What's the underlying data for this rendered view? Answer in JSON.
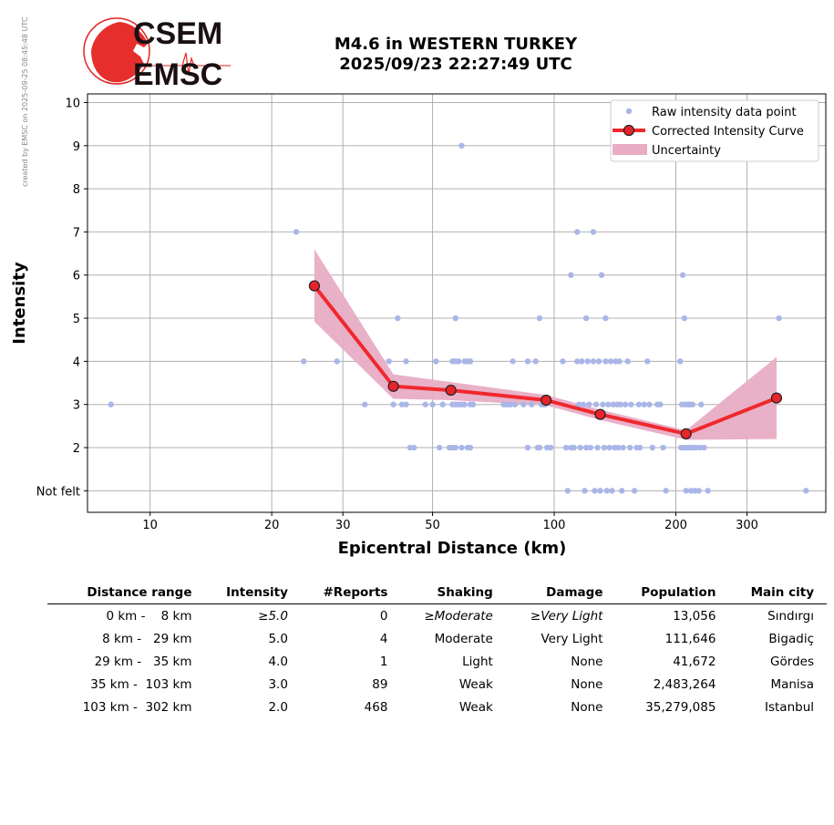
{
  "side_note": "created by EMSC on 2025-09-25 08:45:48 UTC",
  "logo": {
    "line1": "CSEM",
    "line2": "EMSC",
    "color_red": "#e52421",
    "color_dark": "#1a0f12"
  },
  "title": {
    "line1": "M4.6 in WESTERN TURKEY",
    "line2": "2025/09/23 22:27:49 UTC"
  },
  "chart_data": {
    "type": "scatter",
    "xlabel": "Epicentral Distance (km)",
    "ylabel": "Intensity",
    "xscale": "log",
    "xlim": [
      7.0,
      470
    ],
    "ylim": [
      0.5,
      10.2
    ],
    "xticks": [
      10,
      20,
      30,
      50,
      100,
      200,
      300
    ],
    "yticks": [
      {
        "value": 1,
        "label": "Not felt"
      },
      {
        "value": 2,
        "label": "2"
      },
      {
        "value": 3,
        "label": "3"
      },
      {
        "value": 4,
        "label": "4"
      },
      {
        "value": 5,
        "label": "5"
      },
      {
        "value": 6,
        "label": "6"
      },
      {
        "value": 7,
        "label": "7"
      },
      {
        "value": 8,
        "label": "8"
      },
      {
        "value": 9,
        "label": "9"
      },
      {
        "value": 10,
        "label": "10"
      }
    ],
    "grid": true,
    "legend_position": "top-right",
    "legend": [
      "Raw intensity data point",
      "Corrected Intensity Curve",
      "Uncertainty"
    ],
    "colors": {
      "raw": "#aab6e8",
      "curve": "#f0282d",
      "marker": "#e8232a",
      "band": "#e8adc5",
      "grid": "#b0b0b0"
    },
    "raw_points": [
      [
        8.0,
        3
      ],
      [
        23,
        7
      ],
      [
        24,
        4
      ],
      [
        29,
        4
      ],
      [
        34,
        3
      ],
      [
        39,
        4
      ],
      [
        41,
        5
      ],
      [
        42,
        3
      ],
      [
        40,
        3
      ],
      [
        43,
        4
      ],
      [
        43,
        3
      ],
      [
        44,
        2
      ],
      [
        45,
        2
      ],
      [
        48,
        3
      ],
      [
        50,
        3
      ],
      [
        51,
        4
      ],
      [
        52,
        2
      ],
      [
        53,
        3
      ],
      [
        55,
        2
      ],
      [
        56,
        3
      ],
      [
        56,
        2
      ],
      [
        56,
        4
      ],
      [
        57,
        5
      ],
      [
        57,
        3
      ],
      [
        57,
        2
      ],
      [
        57,
        4
      ],
      [
        58,
        3
      ],
      [
        58,
        4
      ],
      [
        59,
        3
      ],
      [
        59,
        2
      ],
      [
        59,
        9
      ],
      [
        60,
        4
      ],
      [
        60,
        3
      ],
      [
        61,
        2
      ],
      [
        61,
        4
      ],
      [
        62,
        3
      ],
      [
        62,
        4
      ],
      [
        62,
        2
      ],
      [
        63,
        3
      ],
      [
        75,
        3
      ],
      [
        76,
        3
      ],
      [
        77,
        3
      ],
      [
        78,
        3
      ],
      [
        79,
        4
      ],
      [
        80,
        3
      ],
      [
        84,
        3
      ],
      [
        86,
        2
      ],
      [
        86,
        4
      ],
      [
        88,
        3
      ],
      [
        90,
        4
      ],
      [
        91,
        2
      ],
      [
        92,
        2
      ],
      [
        92,
        5
      ],
      [
        93,
        3
      ],
      [
        94,
        3
      ],
      [
        95,
        3
      ],
      [
        96,
        2
      ],
      [
        98,
        2
      ],
      [
        105,
        4
      ],
      [
        107,
        2
      ],
      [
        108,
        1
      ],
      [
        110,
        6
      ],
      [
        110,
        2
      ],
      [
        112,
        2
      ],
      [
        114,
        7
      ],
      [
        114,
        4
      ],
      [
        115,
        3
      ],
      [
        116,
        2
      ],
      [
        117,
        4
      ],
      [
        118,
        3
      ],
      [
        119,
        1
      ],
      [
        120,
        2
      ],
      [
        120,
        5
      ],
      [
        121,
        4
      ],
      [
        122,
        3
      ],
      [
        123,
        2
      ],
      [
        125,
        7
      ],
      [
        125,
        4
      ],
      [
        126,
        1
      ],
      [
        127,
        3
      ],
      [
        128,
        2
      ],
      [
        129,
        4
      ],
      [
        130,
        1
      ],
      [
        131,
        6
      ],
      [
        132,
        3
      ],
      [
        133,
        2
      ],
      [
        134,
        4
      ],
      [
        134,
        5
      ],
      [
        135,
        1
      ],
      [
        136,
        3
      ],
      [
        137,
        2
      ],
      [
        138,
        4
      ],
      [
        139,
        1
      ],
      [
        140,
        3
      ],
      [
        141,
        2
      ],
      [
        142,
        4
      ],
      [
        143,
        3
      ],
      [
        144,
        2
      ],
      [
        145,
        4
      ],
      [
        146,
        3
      ],
      [
        147,
        1
      ],
      [
        148,
        2
      ],
      [
        150,
        3
      ],
      [
        152,
        4
      ],
      [
        154,
        2
      ],
      [
        155,
        3
      ],
      [
        158,
        1
      ],
      [
        160,
        2
      ],
      [
        162,
        3
      ],
      [
        163,
        2
      ],
      [
        167,
        3
      ],
      [
        170,
        4
      ],
      [
        172,
        3
      ],
      [
        175,
        2
      ],
      [
        180,
        3
      ],
      [
        183,
        3
      ],
      [
        186,
        2
      ],
      [
        189,
        1
      ],
      [
        205,
        4
      ],
      [
        206,
        2
      ],
      [
        207,
        3
      ],
      [
        208,
        6
      ],
      [
        209,
        2
      ],
      [
        210,
        5
      ],
      [
        211,
        3
      ],
      [
        212,
        1
      ],
      [
        213,
        2
      ],
      [
        214,
        3
      ],
      [
        215,
        2
      ],
      [
        216,
        3
      ],
      [
        218,
        1
      ],
      [
        219,
        2
      ],
      [
        220,
        3
      ],
      [
        222,
        2
      ],
      [
        223,
        1
      ],
      [
        225,
        2
      ],
      [
        228,
        1
      ],
      [
        230,
        2
      ],
      [
        231,
        3
      ],
      [
        235,
        2
      ],
      [
        240,
        1
      ],
      [
        360,
        5
      ],
      [
        420,
        1
      ]
    ],
    "curve": [
      [
        25.5,
        5.75
      ],
      [
        40,
        3.42
      ],
      [
        55.5,
        3.33
      ],
      [
        95.5,
        3.1
      ],
      [
        130,
        2.77
      ],
      [
        212,
        2.32
      ],
      [
        355,
        3.15
      ]
    ],
    "band": {
      "x": [
        25.5,
        40,
        55.5,
        95.5,
        130,
        212,
        355
      ],
      "upper": [
        6.6,
        3.7,
        3.52,
        3.22,
        2.88,
        2.4,
        4.1
      ],
      "lower": [
        4.92,
        3.13,
        3.1,
        2.98,
        2.64,
        2.18,
        2.2
      ]
    }
  },
  "table": {
    "headers": [
      "Distance range",
      "Intensity",
      "#Reports",
      "Shaking",
      "Damage",
      "Population",
      "Main city"
    ],
    "rows": [
      {
        "range": "0 km -    8 km",
        "intensity": "≥5.0",
        "reports": "0",
        "shaking": "≥Moderate",
        "damage": "≥Very Light",
        "population": "13,056",
        "city": "Sındırgı"
      },
      {
        "range": "8 km -   29 km",
        "intensity": "5.0",
        "reports": "4",
        "shaking": "Moderate",
        "damage": "Very Light",
        "population": "111,646",
        "city": "Bigadiç"
      },
      {
        "range": "29 km -   35 km",
        "intensity": "4.0",
        "reports": "1",
        "shaking": "Light",
        "damage": "None",
        "population": "41,672",
        "city": "Gördes"
      },
      {
        "range": "35 km -  103 km",
        "intensity": "3.0",
        "reports": "89",
        "shaking": "Weak",
        "damage": "None",
        "population": "2,483,264",
        "city": "Manisa"
      },
      {
        "range": "103 km -  302 km",
        "intensity": "2.0",
        "reports": "468",
        "shaking": "Weak",
        "damage": "None",
        "population": "35,279,085",
        "city": "Istanbul"
      }
    ]
  }
}
